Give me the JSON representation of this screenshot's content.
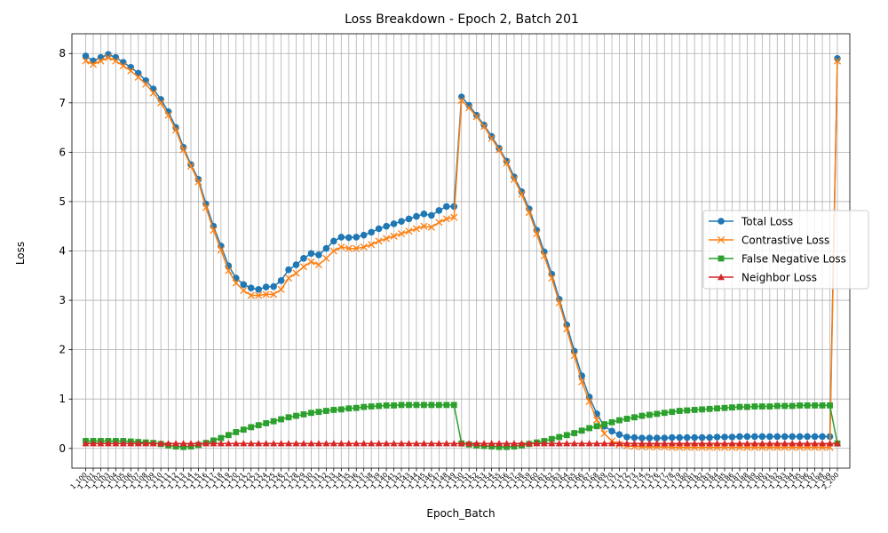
{
  "chart_data": {
    "type": "line",
    "title": "Loss Breakdown - Epoch 2, Batch 201",
    "xlabel": "Epoch_Batch",
    "ylabel": "Loss",
    "ylim": [
      -0.4,
      8.4
    ],
    "yticks": [
      0,
      1,
      2,
      3,
      4,
      5,
      6,
      7,
      8
    ],
    "grid": true,
    "legend_position": "center-right",
    "categories": [
      "1_100",
      "1_101",
      "1_102",
      "1_103",
      "1_104",
      "1_105",
      "1_106",
      "1_107",
      "1_108",
      "1_109",
      "1_110",
      "1_111",
      "1_112",
      "1_113",
      "1_114",
      "1_115",
      "1_116",
      "1_117",
      "1_118",
      "1_119",
      "1_120",
      "1_121",
      "1_122",
      "1_123",
      "1_124",
      "1_125",
      "1_126",
      "1_127",
      "1_128",
      "1_129",
      "1_130",
      "1_131",
      "1_132",
      "1_133",
      "1_134",
      "1_135",
      "1_136",
      "1_137",
      "1_138",
      "1_139",
      "1_140",
      "1_141",
      "1_142",
      "1_143",
      "1_144",
      "1_145",
      "1_146",
      "1_147",
      "1_148",
      "1_149",
      "1_150",
      "1_151",
      "1_152",
      "1_153",
      "1_154",
      "1_155",
      "1_156",
      "1_157",
      "1_158",
      "1_159",
      "1_160",
      "1_161",
      "1_162",
      "1_163",
      "1_164",
      "1_165",
      "1_166",
      "1_167",
      "1_168",
      "1_169",
      "1_170",
      "1_171",
      "1_172",
      "1_173",
      "1_174",
      "1_175",
      "1_176",
      "1_177",
      "1_178",
      "1_179",
      "1_180",
      "1_181",
      "1_182",
      "1_183",
      "1_184",
      "1_185",
      "1_186",
      "1_187",
      "1_188",
      "1_189",
      "1_190",
      "1_191",
      "1_192",
      "1_193",
      "1_194",
      "1_195",
      "1_196",
      "1_197",
      "1_198",
      "1_199",
      "2_200"
    ],
    "series": [
      {
        "name": "Total Loss",
        "color": "#1f77b4",
        "marker": "circle",
        "values": [
          7.95,
          7.85,
          7.92,
          7.98,
          7.92,
          7.82,
          7.72,
          7.6,
          7.45,
          7.28,
          7.07,
          6.82,
          6.5,
          6.1,
          5.75,
          5.45,
          4.95,
          4.5,
          4.1,
          3.7,
          3.45,
          3.32,
          3.25,
          3.22,
          3.27,
          3.28,
          3.4,
          3.62,
          3.72,
          3.85,
          3.95,
          3.92,
          4.05,
          4.2,
          4.28,
          4.27,
          4.28,
          4.32,
          4.38,
          4.45,
          4.5,
          4.55,
          4.6,
          4.65,
          4.7,
          4.75,
          4.72,
          4.82,
          4.9,
          4.9,
          7.12,
          6.95,
          6.75,
          6.55,
          6.32,
          6.08,
          5.82,
          5.5,
          5.2,
          4.85,
          4.42,
          3.98,
          3.53,
          3.02,
          2.5,
          1.97,
          1.47,
          1.04,
          0.7,
          0.45,
          0.35,
          0.28,
          0.23,
          0.22,
          0.21,
          0.21,
          0.21,
          0.21,
          0.22,
          0.22,
          0.22,
          0.22,
          0.22,
          0.22,
          0.23,
          0.23,
          0.23,
          0.24,
          0.24,
          0.24,
          0.24,
          0.24,
          0.24,
          0.24,
          0.24,
          0.24,
          0.24,
          0.24,
          0.24,
          0.24,
          7.9
        ]
      },
      {
        "name": "Contrastive Loss",
        "color": "#ff7f0e",
        "marker": "x",
        "values": [
          7.85,
          7.78,
          7.85,
          7.92,
          7.85,
          7.75,
          7.65,
          7.52,
          7.38,
          7.2,
          7.0,
          6.75,
          6.45,
          6.05,
          5.72,
          5.4,
          4.88,
          4.42,
          4.02,
          3.6,
          3.35,
          3.2,
          3.1,
          3.1,
          3.12,
          3.12,
          3.22,
          3.45,
          3.55,
          3.68,
          3.78,
          3.72,
          3.85,
          4.0,
          4.08,
          4.05,
          4.05,
          4.08,
          4.13,
          4.2,
          4.25,
          4.3,
          4.35,
          4.4,
          4.45,
          4.5,
          4.48,
          4.58,
          4.65,
          4.68,
          7.05,
          6.9,
          6.72,
          6.52,
          6.28,
          6.05,
          5.78,
          5.45,
          5.15,
          4.78,
          4.35,
          3.9,
          3.45,
          2.95,
          2.42,
          1.88,
          1.35,
          0.95,
          0.58,
          0.3,
          0.15,
          0.08,
          0.05,
          0.04,
          0.03,
          0.03,
          0.03,
          0.03,
          0.02,
          0.02,
          0.02,
          0.02,
          0.02,
          0.02,
          0.02,
          0.02,
          0.02,
          0.02,
          0.02,
          0.02,
          0.02,
          0.02,
          0.02,
          0.02,
          0.02,
          0.02,
          0.02,
          0.02,
          0.02,
          0.02,
          7.85
        ]
      },
      {
        "name": "False Negative Loss",
        "color": "#2ca02c",
        "marker": "square",
        "values": [
          0.15,
          0.15,
          0.15,
          0.15,
          0.15,
          0.15,
          0.14,
          0.13,
          0.12,
          0.11,
          0.09,
          0.06,
          0.04,
          0.03,
          0.04,
          0.07,
          0.11,
          0.16,
          0.21,
          0.27,
          0.33,
          0.38,
          0.43,
          0.47,
          0.51,
          0.55,
          0.59,
          0.63,
          0.66,
          0.69,
          0.72,
          0.74,
          0.76,
          0.78,
          0.79,
          0.81,
          0.82,
          0.84,
          0.85,
          0.86,
          0.87,
          0.87,
          0.88,
          0.88,
          0.88,
          0.88,
          0.88,
          0.88,
          0.88,
          0.88,
          0.1,
          0.08,
          0.06,
          0.05,
          0.04,
          0.03,
          0.03,
          0.04,
          0.06,
          0.09,
          0.12,
          0.15,
          0.19,
          0.23,
          0.27,
          0.31,
          0.36,
          0.41,
          0.45,
          0.49,
          0.53,
          0.57,
          0.6,
          0.63,
          0.66,
          0.68,
          0.7,
          0.72,
          0.74,
          0.76,
          0.77,
          0.78,
          0.79,
          0.8,
          0.81,
          0.82,
          0.83,
          0.84,
          0.84,
          0.85,
          0.85,
          0.85,
          0.86,
          0.86,
          0.86,
          0.87,
          0.87,
          0.87,
          0.87,
          0.87,
          0.1
        ]
      },
      {
        "name": "Neighbor Loss",
        "color": "#d62728",
        "marker": "triangle",
        "values": [
          0.1,
          0.1,
          0.1,
          0.1,
          0.1,
          0.1,
          0.1,
          0.1,
          0.1,
          0.1,
          0.1,
          0.1,
          0.1,
          0.1,
          0.1,
          0.1,
          0.1,
          0.1,
          0.1,
          0.1,
          0.1,
          0.1,
          0.1,
          0.1,
          0.1,
          0.1,
          0.1,
          0.1,
          0.1,
          0.1,
          0.1,
          0.1,
          0.1,
          0.1,
          0.1,
          0.1,
          0.1,
          0.1,
          0.1,
          0.1,
          0.1,
          0.1,
          0.1,
          0.1,
          0.1,
          0.1,
          0.1,
          0.1,
          0.1,
          0.1,
          0.1,
          0.1,
          0.1,
          0.1,
          0.1,
          0.1,
          0.1,
          0.1,
          0.1,
          0.1,
          0.1,
          0.1,
          0.1,
          0.1,
          0.1,
          0.1,
          0.1,
          0.1,
          0.1,
          0.1,
          0.1,
          0.1,
          0.1,
          0.1,
          0.1,
          0.1,
          0.1,
          0.1,
          0.1,
          0.1,
          0.1,
          0.1,
          0.1,
          0.1,
          0.1,
          0.1,
          0.1,
          0.1,
          0.1,
          0.1,
          0.1,
          0.1,
          0.1,
          0.1,
          0.1,
          0.1,
          0.1,
          0.1,
          0.1,
          0.1,
          0.1
        ]
      }
    ]
  }
}
